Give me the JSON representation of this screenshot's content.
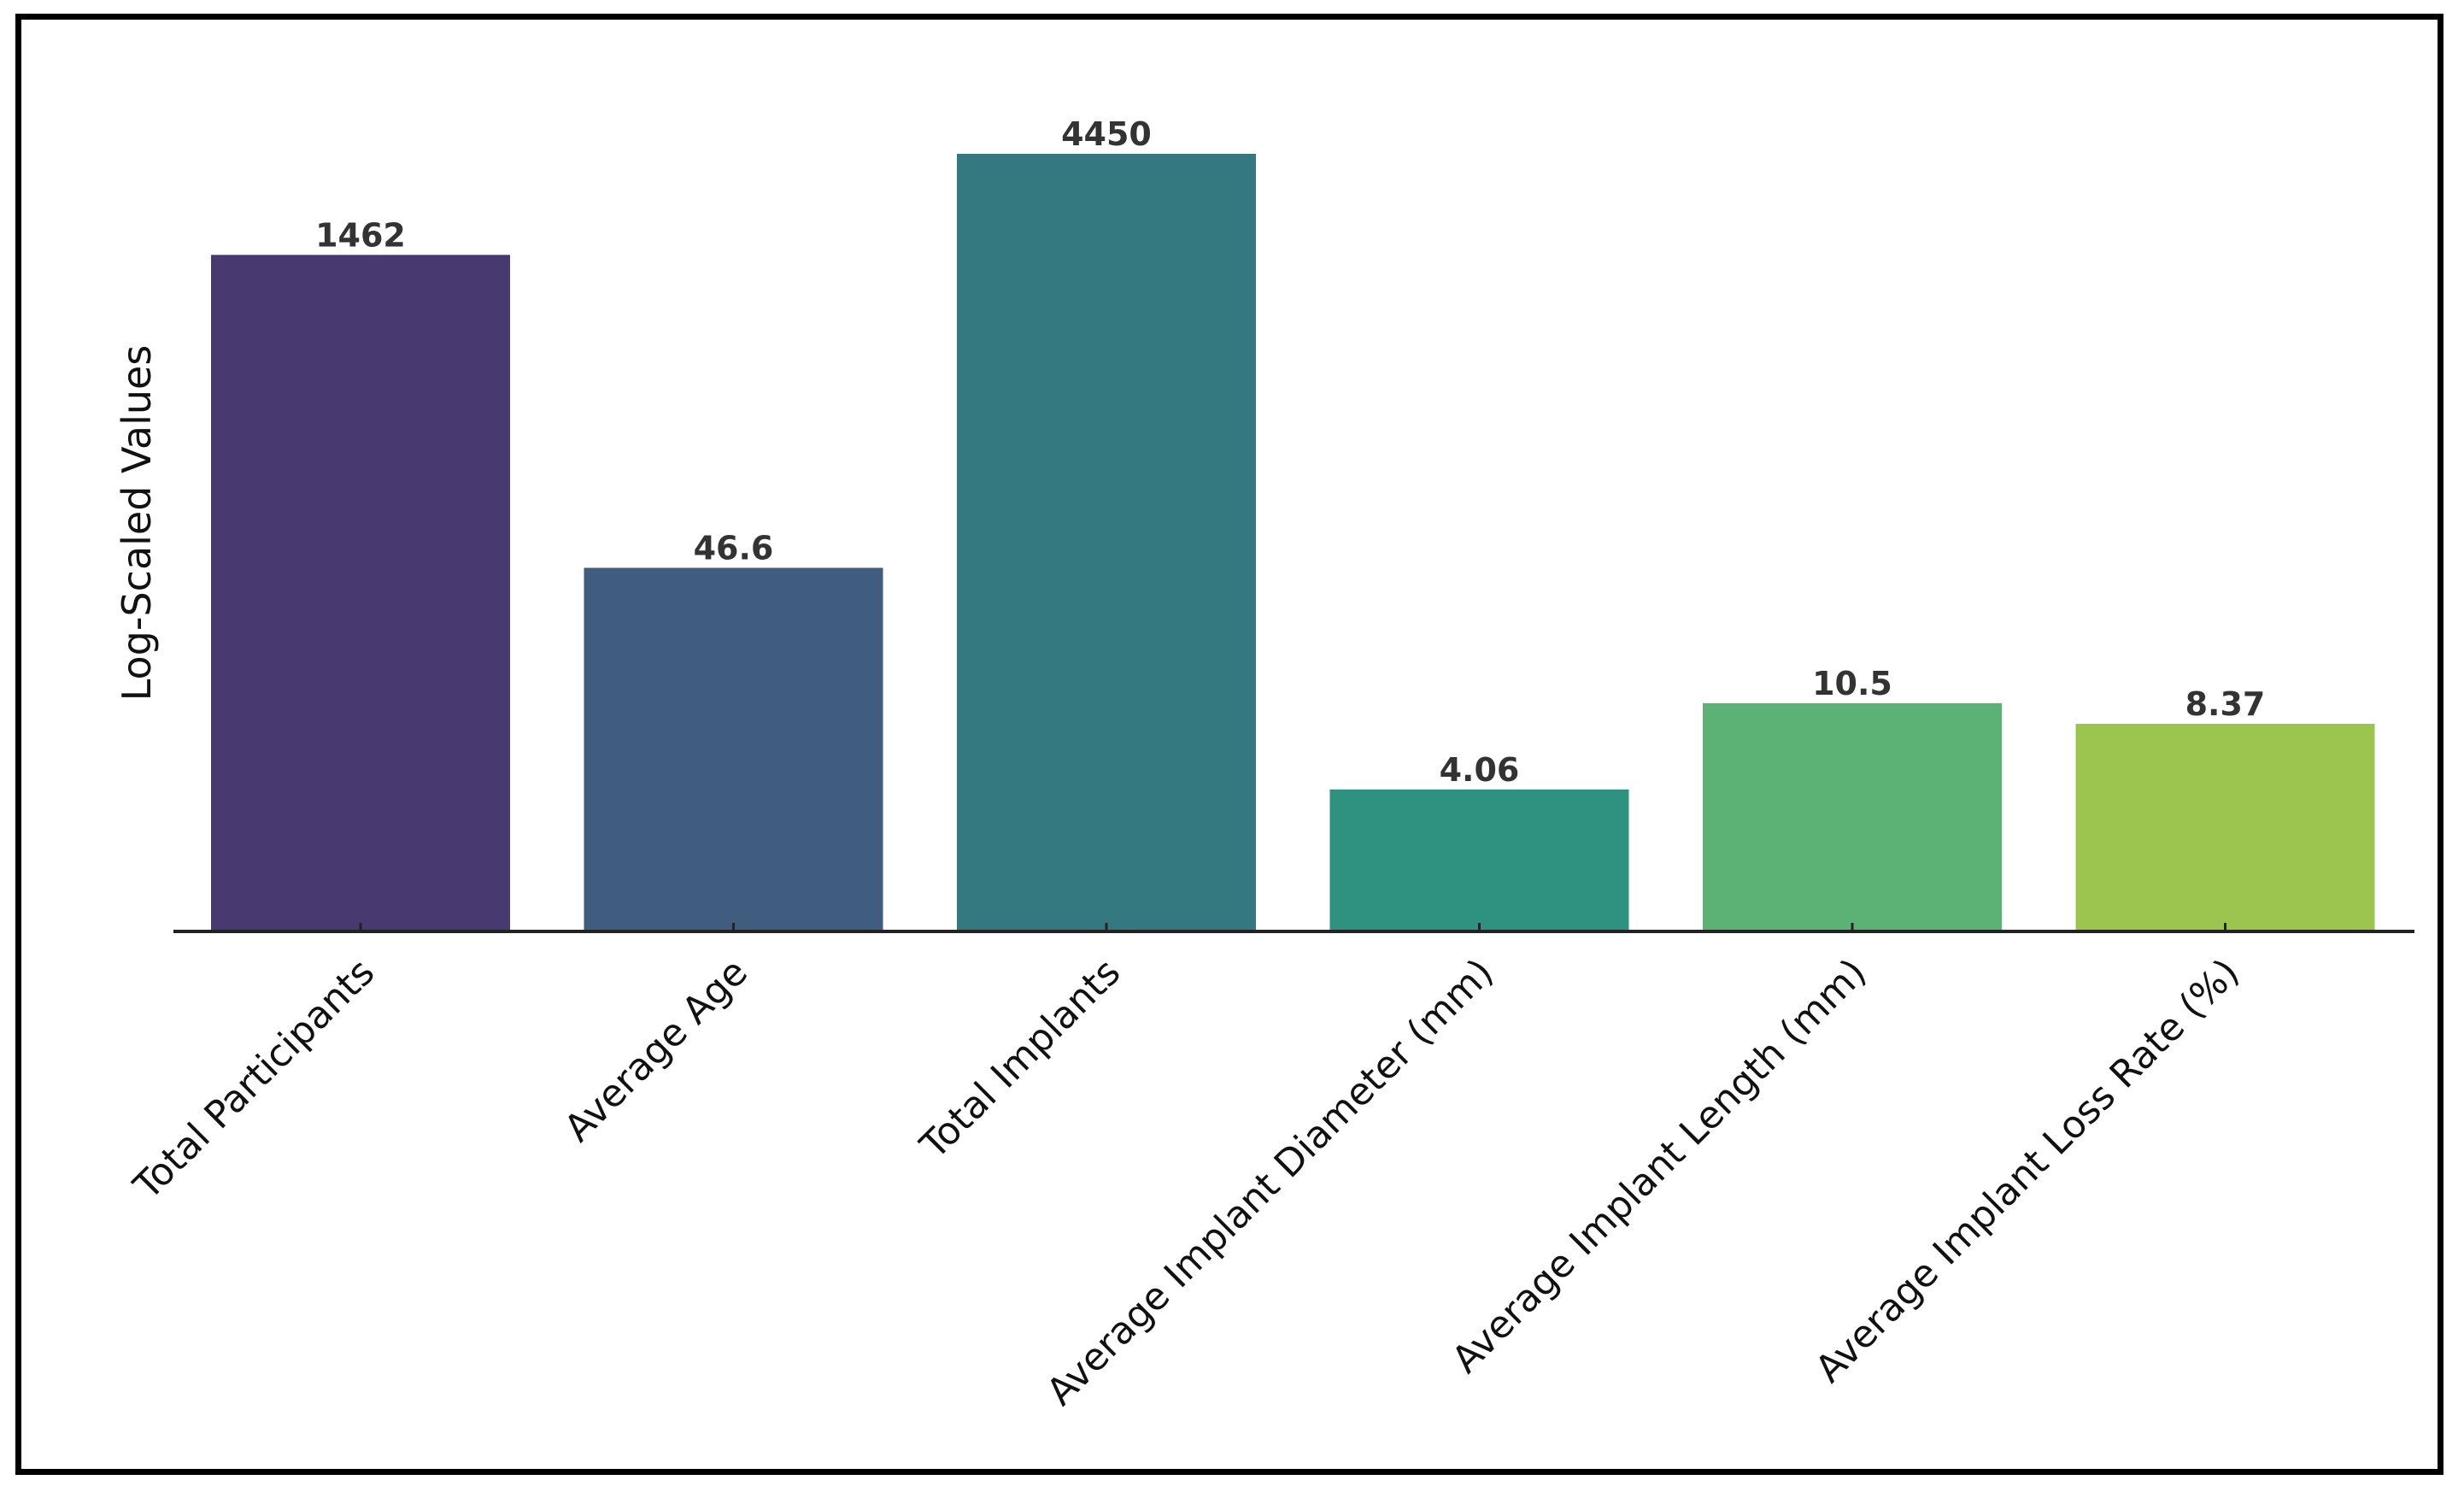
{
  "chart_data": {
    "type": "bar",
    "title": "",
    "xlabel": "",
    "ylabel": "Log-Scaled Values",
    "yscale": "log",
    "grid": false,
    "legend": "none",
    "categories": [
      "Total Participants",
      "Average Age",
      "Total Implants",
      "Average Implant Diameter (mm)",
      "Average Implant Length (mm)",
      "Average Implant Loss Rate (%)"
    ],
    "values": [
      1462,
      46.6,
      4450,
      4.06,
      10.5,
      8.37
    ],
    "value_labels": [
      "1462",
      "46.6",
      "4450",
      "4.06",
      "10.5",
      "8.37"
    ],
    "colors": [
      "#483a70",
      "#405d7f",
      "#347880",
      "#2f917f",
      "#5bb274",
      "#9bc54e"
    ]
  }
}
